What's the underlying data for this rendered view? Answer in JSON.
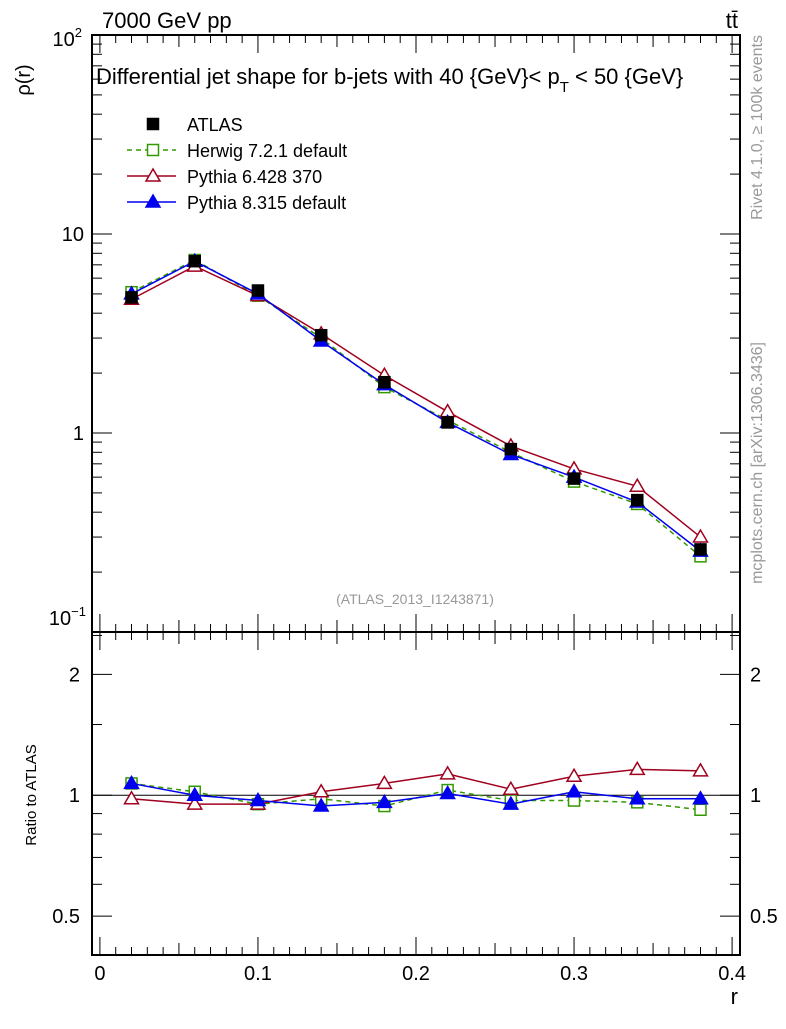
{
  "chart_data": {
    "type": "line",
    "top_left_label": "7000 GeV pp",
    "top_right_label": "tt̄",
    "title": "Differential jet shape for b-jets with 40 {GeV}< p_T < 50 {GeV}",
    "title_main": "Differential jet shape for b-jets with 40 {GeV}< p",
    "title_sub": "T",
    "title_tail": " < 50 {GeV}",
    "ylabel": "ρ(r)",
    "ratio_ylabel": "Ratio to ATLAS",
    "xlabel": "r",
    "xlim": [
      -0.005,
      0.405
    ],
    "ylim": [
      0.1,
      100
    ],
    "yscale": "log",
    "ratio_ylim": [
      0.4,
      2.55
    ],
    "x_ticks": [
      "0",
      "0.1",
      "0.2",
      "0.3",
      "0.4"
    ],
    "x_tick_values": [
      0,
      0.1,
      0.2,
      0.3,
      0.4
    ],
    "y_ticks": [
      "10",
      "1"
    ],
    "y_tick_values": [
      10,
      1
    ],
    "y_tick_top": "10",
    "y_tick_top_exp": "2",
    "y_tick_bottom": "10",
    "y_tick_bottom_exp": "−1",
    "ratio_ticks": [
      "2",
      "1",
      "0.5"
    ],
    "ratio_tick_values": [
      2,
      1,
      0.5
    ],
    "side_label_top": "Rivet 4.1.0, ≥ 100k events",
    "side_label_bottom": "mcplots.cern.ch [arXiv:1306.3436]",
    "watermark": "(ATLAS_2013_I1243871)",
    "legend_position": "top-left",
    "x": [
      0.02,
      0.06,
      0.1,
      0.14,
      0.18,
      0.22,
      0.26,
      0.3,
      0.34,
      0.38
    ],
    "series": [
      {
        "name": "ATLAS",
        "color": "#000000",
        "marker": "square-filled",
        "dashed": false,
        "values": [
          4.8,
          7.3,
          5.2,
          3.1,
          1.8,
          1.13,
          0.83,
          0.59,
          0.46,
          0.26
        ],
        "ratio": [
          1,
          1,
          1,
          1,
          1,
          1,
          1,
          1,
          1,
          1
        ]
      },
      {
        "name": "Herwig 7.2.1 default",
        "color": "#339900",
        "marker": "square-open",
        "dashed": true,
        "values": [
          5.1,
          7.4,
          4.9,
          3.0,
          1.7,
          1.16,
          0.8,
          0.57,
          0.44,
          0.24
        ],
        "ratio": [
          1.07,
          1.02,
          0.95,
          0.98,
          0.94,
          1.03,
          0.97,
          0.97,
          0.96,
          0.92
        ]
      },
      {
        "name": "Pythia 6.428 370",
        "color": "#a0001e",
        "marker": "triangle-open",
        "dashed": false,
        "values": [
          4.7,
          6.9,
          4.9,
          3.15,
          1.95,
          1.28,
          0.86,
          0.66,
          0.54,
          0.3
        ],
        "ratio": [
          0.98,
          0.95,
          0.95,
          1.02,
          1.07,
          1.13,
          1.035,
          1.115,
          1.16,
          1.15
        ]
      },
      {
        "name": "Pythia 8.315 default",
        "color": "#0000ee",
        "marker": "triangle-filled",
        "dashed": false,
        "values": [
          5.0,
          7.3,
          5.0,
          2.9,
          1.75,
          1.13,
          0.78,
          0.6,
          0.45,
          0.255
        ],
        "ratio": [
          1.07,
          1.0,
          0.97,
          0.94,
          0.96,
          1.01,
          0.95,
          1.02,
          0.98,
          0.98
        ]
      }
    ]
  }
}
